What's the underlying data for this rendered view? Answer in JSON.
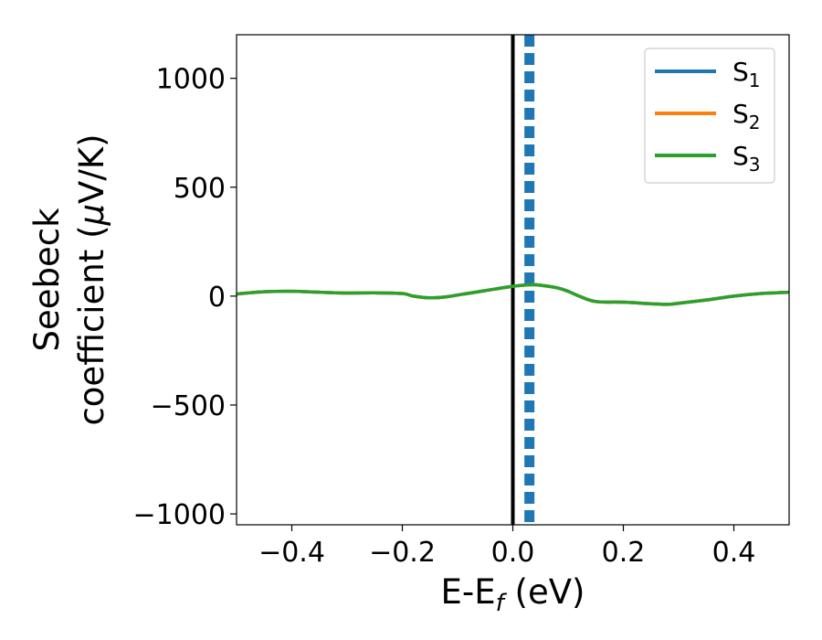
{
  "chart_data": {
    "type": "line",
    "xlabel": {
      "main": "E-E",
      "sub": "f",
      "tail": " (eV)"
    },
    "ylabel": {
      "line1": "Seebeck",
      "line2_pre": "coefficient  (",
      "line2_mu": "μ",
      "line2_post": "V/K)"
    },
    "xlim": [
      -0.5,
      0.5
    ],
    "ylim": [
      -1050,
      1200
    ],
    "xticks": [
      -0.4,
      -0.2,
      0.0,
      0.2,
      0.4
    ],
    "xtick_labels": [
      "−0.4",
      "−0.2",
      "0.0",
      "0.2",
      "0.4"
    ],
    "yticks": [
      -1000,
      -500,
      0,
      500,
      1000
    ],
    "ytick_labels": [
      "−1000",
      "−500",
      "0",
      "500",
      "1000"
    ],
    "legend_position": "top-right",
    "grid": false,
    "fermi_line": {
      "x": 0.0,
      "color": "#000000"
    },
    "dashed_line": {
      "x": 0.03,
      "color": "#1f77b4"
    },
    "x": [
      -0.5,
      -0.45,
      -0.4,
      -0.35,
      -0.3,
      -0.25,
      -0.2,
      -0.18,
      -0.15,
      -0.12,
      -0.1,
      -0.05,
      0.0,
      0.03,
      0.05,
      0.08,
      0.1,
      0.12,
      0.15,
      0.2,
      0.25,
      0.28,
      0.3,
      0.35,
      0.4,
      0.45,
      0.5
    ],
    "series": [
      {
        "name": "S",
        "sub": "1",
        "color": "#1f77b4",
        "values": [
          10,
          20,
          22,
          18,
          14,
          15,
          12,
          0,
          -8,
          -3,
          5,
          25,
          45,
          52,
          50,
          38,
          22,
          0,
          -25,
          -28,
          -35,
          -38,
          -33,
          -18,
          0,
          12,
          18
        ]
      },
      {
        "name": "S",
        "sub": "2",
        "color": "#ff7f0e",
        "values": [
          10,
          20,
          22,
          18,
          14,
          15,
          12,
          0,
          -8,
          -3,
          5,
          25,
          45,
          52,
          50,
          38,
          22,
          0,
          -25,
          -28,
          -35,
          -38,
          -33,
          -18,
          0,
          12,
          18
        ]
      },
      {
        "name": "S",
        "sub": "3",
        "color": "#2ca02c",
        "values": [
          10,
          20,
          22,
          18,
          14,
          15,
          12,
          0,
          -8,
          -3,
          5,
          25,
          45,
          52,
          50,
          38,
          22,
          0,
          -25,
          -28,
          -35,
          -38,
          -33,
          -18,
          0,
          12,
          18
        ]
      }
    ]
  }
}
